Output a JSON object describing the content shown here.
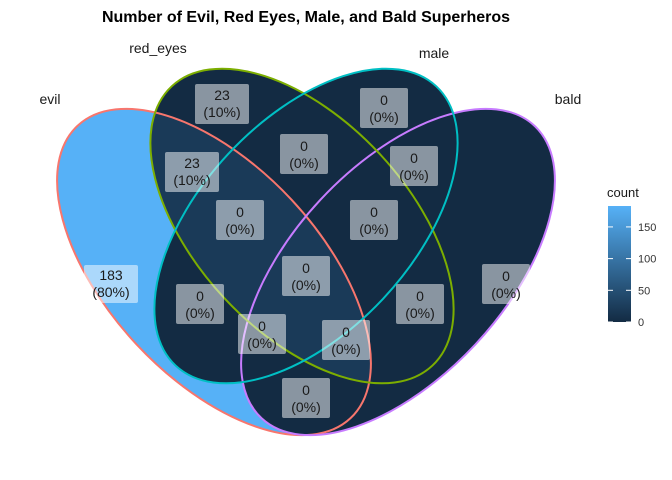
{
  "chart_data": {
    "type": "venn",
    "title": "Number of Evil, Red Eyes, Male, and Bald Superheros",
    "sets": [
      {
        "name": "evil",
        "color": "#F8766D"
      },
      {
        "name": "red_eyes",
        "color": "#7CAE00"
      },
      {
        "name": "male",
        "color": "#00BFC4"
      },
      {
        "name": "bald",
        "color": "#C77CFF"
      }
    ],
    "regions": [
      {
        "sets": [
          "evil"
        ],
        "count": "183",
        "percent": "(80%)"
      },
      {
        "sets": [
          "red_eyes"
        ],
        "count": "23",
        "percent": "(10%)"
      },
      {
        "sets": [
          "male"
        ],
        "count": "0",
        "percent": "(0%)"
      },
      {
        "sets": [
          "bald"
        ],
        "count": "0",
        "percent": "(0%)"
      },
      {
        "sets": [
          "evil",
          "red_eyes"
        ],
        "count": "23",
        "percent": "(10%)"
      },
      {
        "sets": [
          "red_eyes",
          "male"
        ],
        "count": "0",
        "percent": "(0%)"
      },
      {
        "sets": [
          "male",
          "bald"
        ],
        "count": "0",
        "percent": "(0%)"
      },
      {
        "sets": [
          "evil",
          "red_eyes",
          "male"
        ],
        "count": "0",
        "percent": "(0%)"
      },
      {
        "sets": [
          "red_eyes",
          "male",
          "bald"
        ],
        "count": "0",
        "percent": "(0%)"
      },
      {
        "sets": [
          "evil",
          "red_eyes",
          "male",
          "bald"
        ],
        "count": "0",
        "percent": "(0%)"
      },
      {
        "sets": [
          "evil",
          "male"
        ],
        "count": "0",
        "percent": "(0%)"
      },
      {
        "sets": [
          "red_eyes",
          "bald"
        ],
        "count": "0",
        "percent": "(0%)"
      },
      {
        "sets": [
          "evil",
          "male",
          "bald"
        ],
        "count": "0",
        "percent": "(0%)"
      },
      {
        "sets": [
          "evil",
          "red_eyes",
          "bald"
        ],
        "count": "0",
        "percent": "(0%)"
      },
      {
        "sets": [
          "evil",
          "bald"
        ],
        "count": "0",
        "percent": "(0%)"
      }
    ],
    "legend": {
      "title": "count",
      "position": "right",
      "ticks": [
        0,
        50,
        100,
        150
      ],
      "range": [
        0,
        183
      ],
      "low_color": "#132B43",
      "high_color": "#56B1F7"
    }
  }
}
